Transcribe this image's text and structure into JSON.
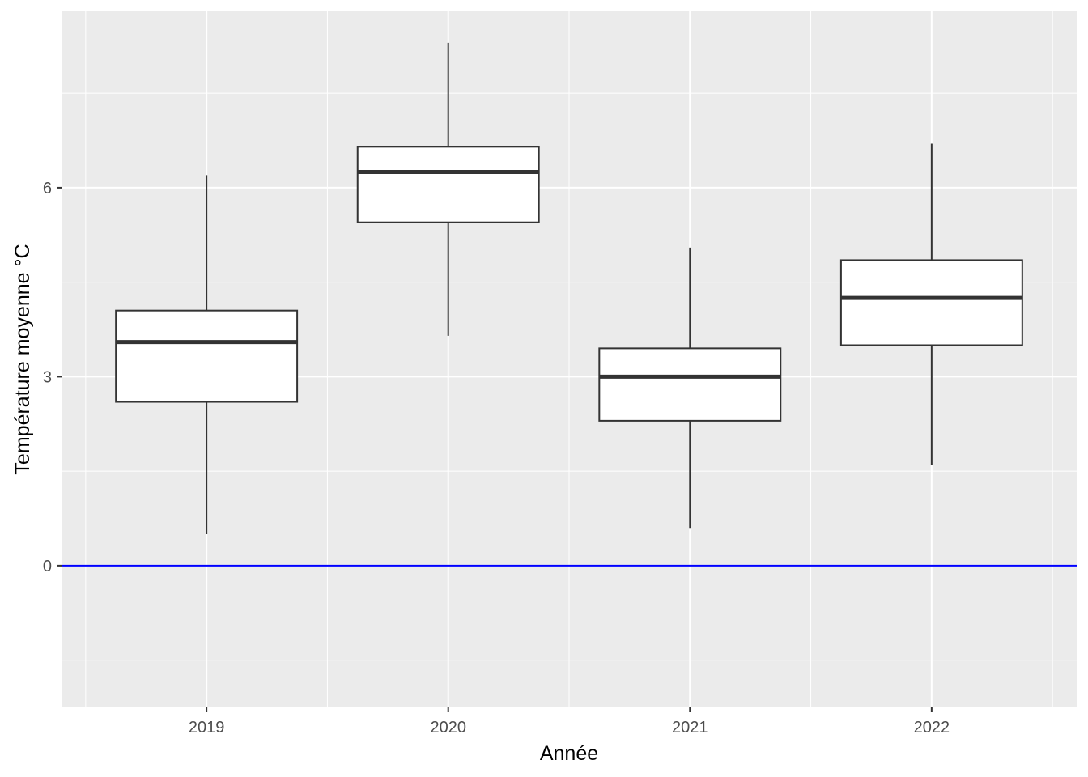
{
  "chart_data": {
    "type": "boxplot",
    "xlabel": "Année",
    "ylabel": "Température moyenne °C",
    "categories": [
      "2019",
      "2020",
      "2021",
      "2022"
    ],
    "boxes": [
      {
        "category": "2019",
        "whisker_low": 0.5,
        "q1": 2.6,
        "median": 3.55,
        "q3": 4.05,
        "whisker_high": 6.2
      },
      {
        "category": "2020",
        "whisker_low": 3.65,
        "q1": 5.45,
        "median": 6.25,
        "q3": 6.65,
        "whisker_high": 8.3
      },
      {
        "category": "2021",
        "whisker_low": 0.6,
        "q1": 2.3,
        "median": 3.0,
        "q3": 3.45,
        "whisker_high": 5.05
      },
      {
        "category": "2022",
        "whisker_low": 1.6,
        "q1": 3.5,
        "median": 4.25,
        "q3": 4.85,
        "whisker_high": 6.7
      }
    ],
    "y_ticks": [
      0,
      3,
      6
    ],
    "ylim": [
      -2.25,
      8.8
    ],
    "reference_line": {
      "y": 0,
      "color": "#0000ff"
    },
    "colors": {
      "panel_background": "#ebebeb",
      "grid": "#ffffff",
      "box_fill": "#ffffff",
      "box_line": "#333333"
    },
    "grid": true,
    "legend": "none"
  }
}
